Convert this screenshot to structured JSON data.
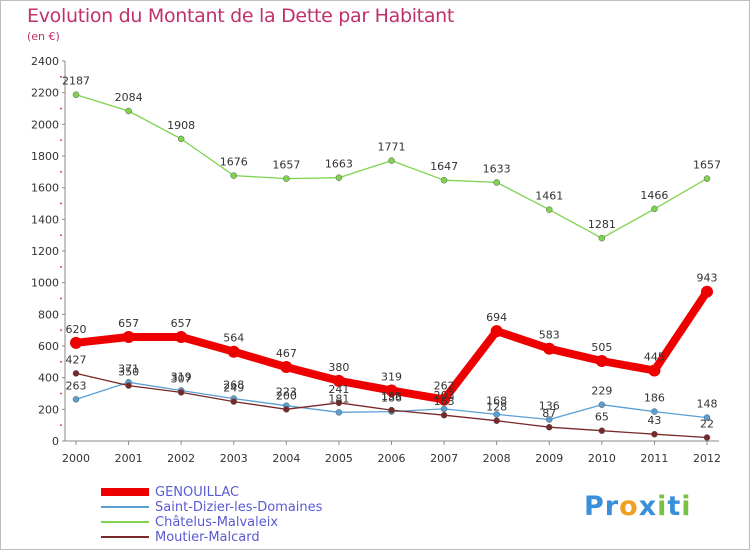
{
  "title": "Evolution du Montant de la Dette par Habitant",
  "subtitle": "(en €)",
  "logo": {
    "text": "Proxiti",
    "letters": [
      {
        "ch": "P",
        "color": "#3a8fd8"
      },
      {
        "ch": "r",
        "color": "#3a8fd8"
      },
      {
        "ch": "o",
        "color": "#f0a020"
      },
      {
        "ch": "x",
        "color": "#3a8fd8"
      },
      {
        "ch": "i",
        "color": "#7ac143"
      },
      {
        "ch": "t",
        "color": "#3a8fd8"
      },
      {
        "ch": "i",
        "color": "#7ac143"
      }
    ]
  },
  "chart_data": {
    "type": "line",
    "title": "Evolution du Montant de la Dette par Habitant",
    "subtitle": "(en €)",
    "x": [
      "2000",
      "2001",
      "2002",
      "2003",
      "2004",
      "2005",
      "2006",
      "2007",
      "2008",
      "2009",
      "2010",
      "2011",
      "2012"
    ],
    "ylim": [
      0,
      2400
    ],
    "yticks": [
      0,
      200,
      400,
      600,
      800,
      1000,
      1200,
      1400,
      1600,
      1800,
      2000,
      2200,
      2400
    ],
    "grid": false,
    "legend_position": "bottom-left",
    "series": [
      {
        "name": "GENOUILLAC",
        "color": "#ee0000",
        "emphasis": true,
        "values": [
          620,
          657,
          657,
          564,
          467,
          380,
          319,
          262,
          694,
          583,
          505,
          445,
          943
        ]
      },
      {
        "name": "Saint-Dizier-les-Domaines",
        "color": "#5a9fd4",
        "values": [
          263,
          371,
          319,
          268,
          223,
          181,
          186,
          203,
          168,
          136,
          229,
          186,
          148
        ]
      },
      {
        "name": "Châtelus-Malvaleix",
        "color": "#7ed34f",
        "values": [
          2187,
          2084,
          1908,
          1676,
          1657,
          1663,
          1771,
          1647,
          1633,
          1461,
          1281,
          1466,
          1657
        ]
      },
      {
        "name": "Moutier-Malcard",
        "color": "#7a2828",
        "values": [
          427,
          350,
          307,
          249,
          200,
          241,
          195,
          163,
          128,
          87,
          65,
          43,
          22
        ]
      }
    ]
  }
}
